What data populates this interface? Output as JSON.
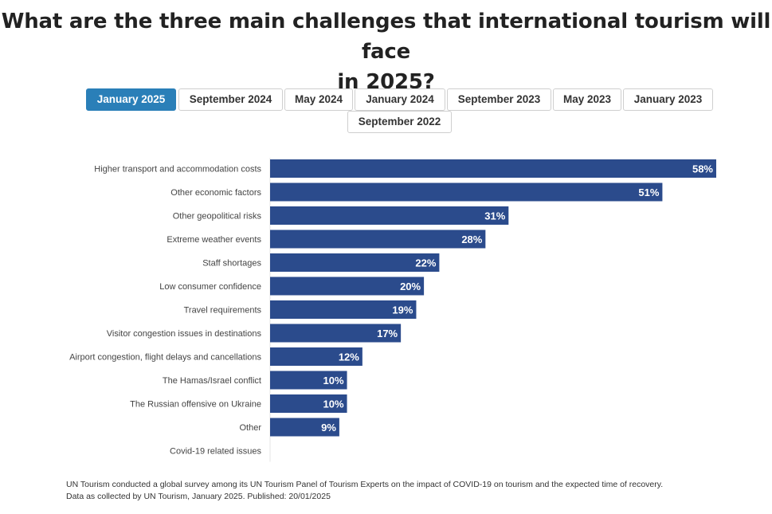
{
  "page": {
    "title_lines": [
      "What are the three main challenges that international tourism will face",
      "in 2025?"
    ]
  },
  "tabs": [
    {
      "label": "January 2025",
      "active": true
    },
    {
      "label": "September 2024",
      "active": false
    },
    {
      "label": "May 2024",
      "active": false
    },
    {
      "label": "January 2024",
      "active": false
    },
    {
      "label": "September 2023",
      "active": false
    },
    {
      "label": "May 2023",
      "active": false
    },
    {
      "label": "January 2023",
      "active": false
    },
    {
      "label": "September 2022",
      "active": false
    }
  ],
  "chart_data": {
    "type": "bar",
    "orientation": "horizontal",
    "categories": [
      "Higher transport and accommodation costs",
      "Other economic factors",
      "Other geopolitical risks",
      "Extreme weather events",
      "Staff shortages",
      "Low consumer confidence",
      "Travel requirements",
      "Visitor congestion issues in destinations",
      "Airport congestion, flight delays and cancellations",
      "The Hamas/Israel conflict",
      "The Russian offensive on Ukraine",
      "Other",
      "Covid-19 related issues"
    ],
    "values": [
      58,
      51,
      31,
      28,
      22,
      20,
      19,
      17,
      12,
      10,
      10,
      9,
      null
    ],
    "data_labels": [
      "58%",
      "51%",
      "31%",
      "28%",
      "22%",
      "20%",
      "19%",
      "17%",
      "12%",
      "10%",
      "10%",
      "9%",
      ""
    ],
    "xlim": [
      0,
      58
    ],
    "grid": false,
    "bar_color": "#2b4b8c",
    "label_color": "#ffffff"
  },
  "footer": {
    "line1": "UN Tourism conducted a global survey among its UN Tourism Panel of Tourism Experts on the impact of COVID-19 on tourism and the expected time of recovery.",
    "line2": "Data as collected by UN Tourism, January 2025. Published: 20/01/2025"
  }
}
